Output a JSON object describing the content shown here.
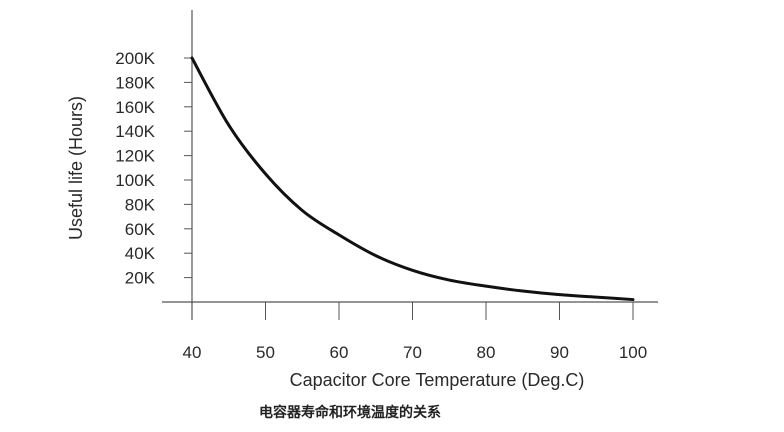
{
  "chart_data": {
    "type": "line",
    "xlabel": "Capacitor Core Temperature (Deg.C)",
    "ylabel": "Useful life (Hours)",
    "xlim": [
      40,
      100
    ],
    "ylim": [
      0,
      200000
    ],
    "x_ticks": [
      40,
      50,
      60,
      70,
      80,
      90,
      100
    ],
    "x_tick_labels": [
      "40",
      "50",
      "60",
      "70",
      "80",
      "90",
      "100"
    ],
    "y_ticks": [
      20000,
      40000,
      60000,
      80000,
      100000,
      120000,
      140000,
      160000,
      180000,
      200000
    ],
    "y_tick_labels": [
      "20K",
      "40K",
      "60K",
      "80K",
      "100K",
      "120K",
      "140K",
      "160K",
      "180K",
      "200K"
    ],
    "grid": false,
    "series": [
      {
        "x": [
          40,
          45,
          50,
          55,
          60,
          65,
          70,
          75,
          80,
          85,
          90,
          95,
          100
        ],
        "y": [
          200000,
          145000,
          105000,
          75000,
          55000,
          38000,
          26000,
          18000,
          13000,
          9000,
          6000,
          4000,
          2000
        ],
        "color": "#111111"
      }
    ]
  },
  "caption": "电容器寿命和环境温度的关系"
}
